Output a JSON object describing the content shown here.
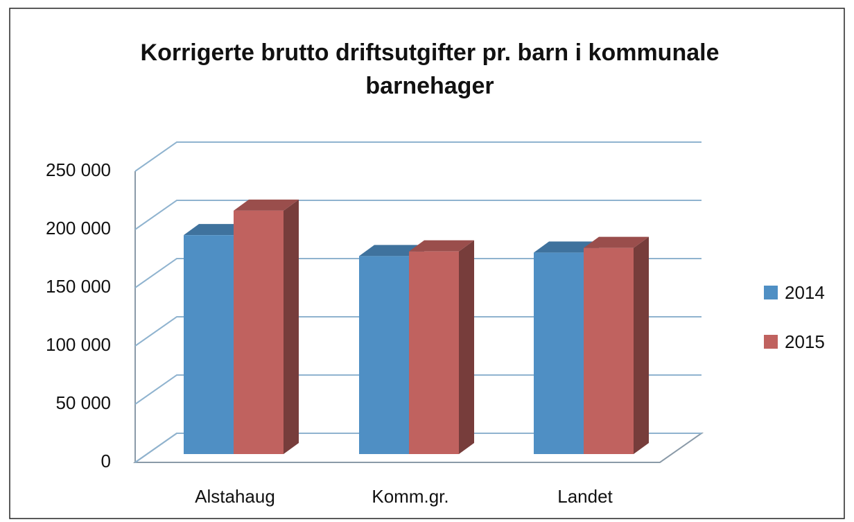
{
  "chart_data": {
    "type": "bar3d",
    "title": "Korrigerte brutto driftsutgifter pr. barn i kommunale barnehager",
    "categories": [
      "Alstahaug",
      "Komm.gr.",
      "Landet"
    ],
    "series": [
      {
        "name": "2014",
        "color": "#4f8fc4",
        "values": [
          188000,
          170000,
          173000
        ]
      },
      {
        "name": "2015",
        "color": "#c0625f",
        "values": [
          209000,
          174000,
          177000
        ]
      }
    ],
    "ylim": [
      0,
      250000
    ],
    "yticks": [
      0,
      {
        "value": 50000,
        "label": "50 000"
      },
      {
        "value": 100000,
        "label": "100 000"
      },
      {
        "value": 150000,
        "label": "150 000"
      },
      {
        "value": 200000,
        "label": "200 000"
      },
      {
        "value": 250000,
        "label": "250 000"
      }
    ],
    "grid": true,
    "legend": "right"
  }
}
